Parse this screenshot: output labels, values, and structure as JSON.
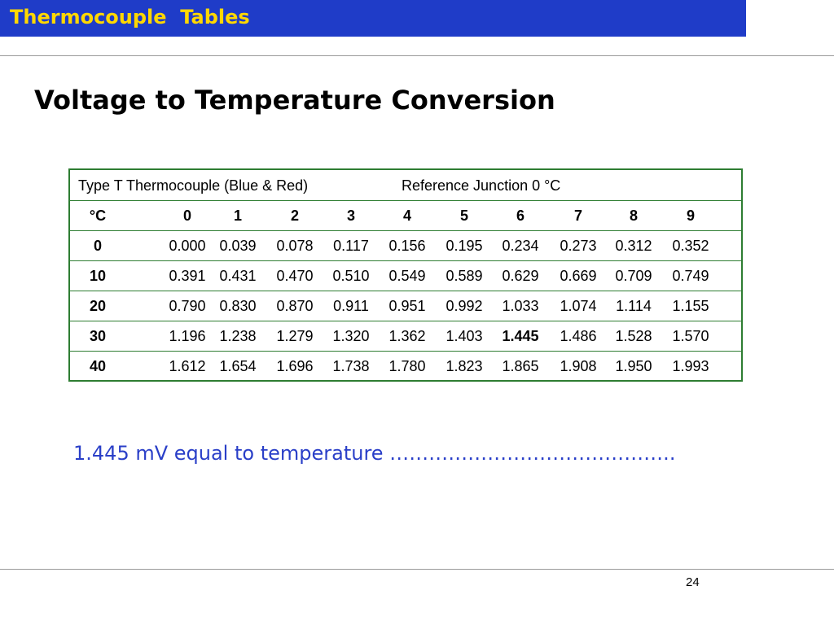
{
  "slide": {
    "header": "Thermocouple  Tables",
    "heading": "Voltage to Temperature Conversion",
    "question": "1.445 mV equal to temperature ……………………………………..",
    "page_number": "24",
    "colors": {
      "title_bar": "#1f3cc8",
      "title_text": "#ffd700",
      "question_text": "#2a3fc8",
      "table_border": "#2e7d32"
    }
  },
  "table": {
    "caption_left": "Type T Thermocouple (Blue & Red)",
    "caption_right": "Reference Junction 0 °C",
    "unit_label": "°C",
    "columns": [
      "0",
      "1",
      "2",
      "3",
      "4",
      "5",
      "6",
      "7",
      "8",
      "9"
    ],
    "rows": [
      {
        "label": "0",
        "values": [
          "0.000",
          "0.039",
          "0.078",
          "0.117",
          "0.156",
          "0.195",
          "0.234",
          "0.273",
          "0.312",
          "0.352"
        ]
      },
      {
        "label": "10",
        "values": [
          "0.391",
          "0.431",
          "0.470",
          "0.510",
          "0.549",
          "0.589",
          "0.629",
          "0.669",
          "0.709",
          "0.749"
        ]
      },
      {
        "label": "20",
        "values": [
          "0.790",
          "0.830",
          "0.870",
          "0.911",
          "0.951",
          "0.992",
          "1.033",
          "1.074",
          "1.114",
          "1.155"
        ]
      },
      {
        "label": "30",
        "values": [
          "1.196",
          "1.238",
          "1.279",
          "1.320",
          "1.362",
          "1.403",
          "1.445",
          "1.486",
          "1.528",
          "1.570"
        ]
      },
      {
        "label": "40",
        "values": [
          "1.612",
          "1.654",
          "1.696",
          "1.738",
          "1.780",
          "1.823",
          "1.865",
          "1.908",
          "1.950",
          "1.993"
        ]
      }
    ],
    "highlighted_value": "1.445"
  }
}
